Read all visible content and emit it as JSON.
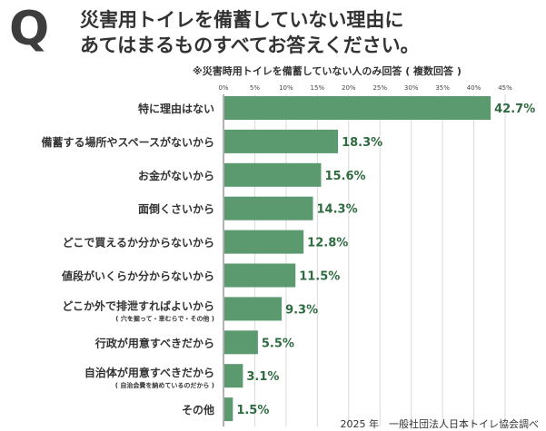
{
  "question_mark": "Q",
  "title_line1": "災害用トイレを備蓄していない理由に",
  "title_line2": "あてはまるものすべてお答えください。",
  "subtitle": "※災害時用トイレを備蓄していない人のみ回答 ( 複数回答 )",
  "source": "2025 年　一般社団法人日本トイレ協会調べ",
  "chart_data": {
    "type": "bar",
    "orientation": "horizontal",
    "title": "災害用トイレを備蓄していない理由にあてはまるものすべてお答えください。",
    "xlabel": "",
    "ylabel": "",
    "xlim": [
      0,
      45
    ],
    "tick_values": [
      0,
      5,
      10,
      15,
      20,
      25,
      30,
      35,
      40,
      45
    ],
    "tick_labels": [
      "0%",
      "5%",
      "10%",
      "15%",
      "20%",
      "25%",
      "30%",
      "35%",
      "40%",
      "45%"
    ],
    "grid": true,
    "bar_color": "#5a9a6e",
    "label_color": "#2e6b40",
    "categories": [
      {
        "label": "特に理由はない",
        "note": "",
        "value": 42.7,
        "value_label": "42.7%"
      },
      {
        "label": "備蓄する場所やスペースがないから",
        "note": "",
        "value": 18.3,
        "value_label": "18.3%"
      },
      {
        "label": "お金がないから",
        "note": "",
        "value": 15.6,
        "value_label": "15.6%"
      },
      {
        "label": "面倒くさいから",
        "note": "",
        "value": 14.3,
        "value_label": "14.3%"
      },
      {
        "label": "どこで買えるか分からないから",
        "note": "",
        "value": 12.8,
        "value_label": "12.8%"
      },
      {
        "label": "値段がいくらか分からないから",
        "note": "",
        "value": 11.5,
        "value_label": "11.5%"
      },
      {
        "label": "どこか外で排泄すればよいから",
        "note": "( 穴を掘って・車むらで・その他 )",
        "value": 9.3,
        "value_label": "9.3%"
      },
      {
        "label": "行政が用意すべきだから",
        "note": "",
        "value": 5.5,
        "value_label": "5.5%"
      },
      {
        "label": "自治体が用意すべきだから",
        "note": "( 自治会費を納めているのだから )",
        "value": 3.1,
        "value_label": "3.1%"
      },
      {
        "label": "その他",
        "note": "",
        "value": 1.5,
        "value_label": "1.5%"
      }
    ]
  }
}
